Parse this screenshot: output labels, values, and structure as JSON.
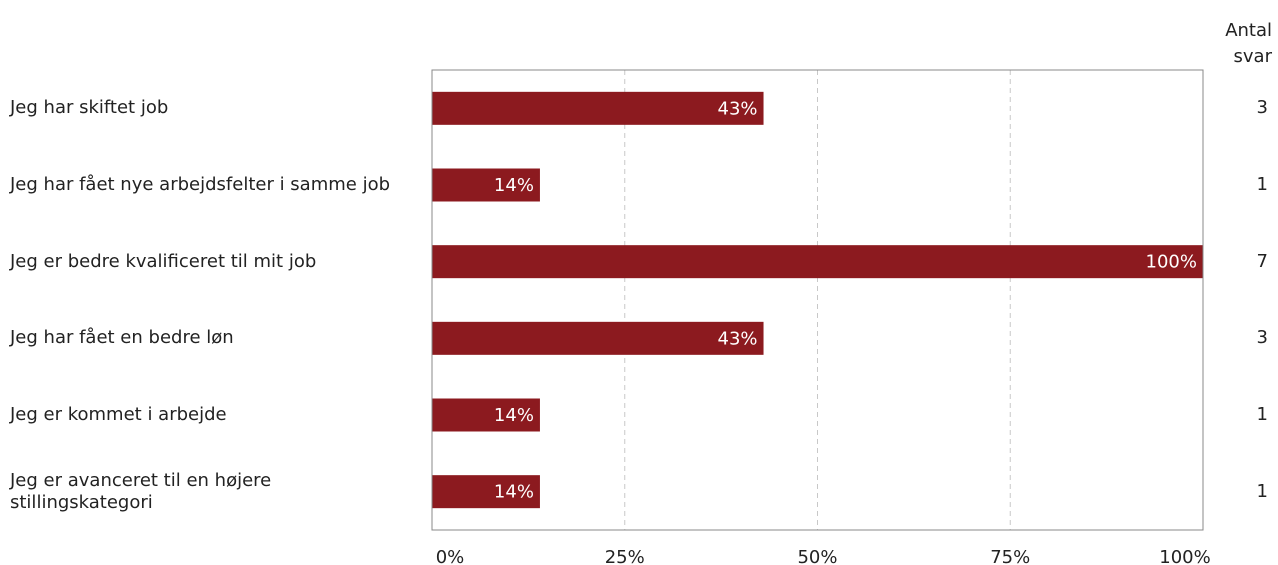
{
  "chart_data": {
    "type": "bar",
    "orientation": "horizontal",
    "categories": [
      "Jeg har skiftet job",
      "Jeg har fået nye arbejdsfelter i samme job",
      "Jeg er bedre kvalificeret til mit job",
      "Jeg har fået en bedre løn",
      "Jeg er kommet i arbejde",
      "Jeg er avanceret til en højere stillingskategori"
    ],
    "values": [
      43,
      14,
      100,
      43,
      14,
      14
    ],
    "data_labels": [
      "43%",
      "14%",
      "100%",
      "43%",
      "14%",
      "14%"
    ],
    "counts": [
      3,
      1,
      7,
      3,
      1,
      1
    ],
    "count_header": "Antal svar",
    "x_ticks": [
      "0%",
      "25%",
      "50%",
      "75%",
      "100%"
    ],
    "xlim": [
      0,
      100
    ],
    "grid": true,
    "bar_color": "#8c1a1f",
    "title": "",
    "xlabel": "",
    "ylabel": ""
  }
}
